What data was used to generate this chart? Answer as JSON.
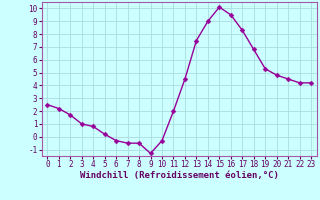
{
  "x": [
    0,
    1,
    2,
    3,
    4,
    5,
    6,
    7,
    8,
    9,
    10,
    11,
    12,
    13,
    14,
    15,
    16,
    17,
    18,
    19,
    20,
    21,
    22,
    23
  ],
  "y": [
    2.5,
    2.2,
    1.7,
    1.0,
    0.8,
    0.2,
    -0.3,
    -0.5,
    -0.5,
    -1.3,
    -0.3,
    2.0,
    4.5,
    7.5,
    9.0,
    10.1,
    9.5,
    8.3,
    6.8,
    5.3,
    4.8,
    4.5,
    4.2,
    4.2
  ],
  "line_color": "#990099",
  "marker_color": "#990099",
  "bg_color": "#ccffff",
  "grid_color": "#aadddd",
  "xlabel": "Windchill (Refroidissement éolien,°C)",
  "xlim": [
    -0.5,
    23.5
  ],
  "ylim": [
    -1.5,
    10.5
  ],
  "yticks": [
    -1,
    0,
    1,
    2,
    3,
    4,
    5,
    6,
    7,
    8,
    9,
    10
  ],
  "xticks": [
    0,
    1,
    2,
    3,
    4,
    5,
    6,
    7,
    8,
    9,
    10,
    11,
    12,
    13,
    14,
    15,
    16,
    17,
    18,
    19,
    20,
    21,
    22,
    23
  ],
  "xlabel_fontsize": 6.5,
  "tick_fontsize": 5.5,
  "line_width": 1.0,
  "marker_size": 2.5,
  "text_color": "#660066",
  "spine_color": "#aa55aa"
}
